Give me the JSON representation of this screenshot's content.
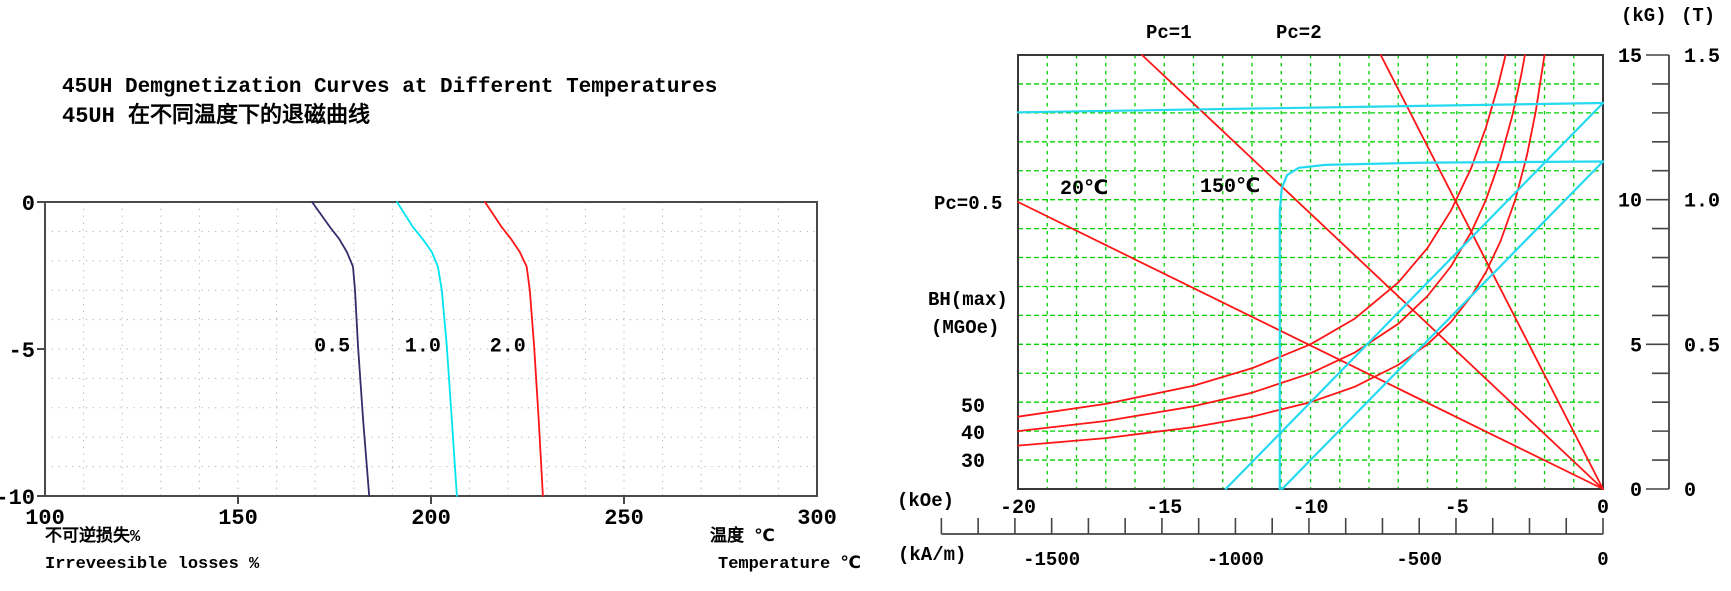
{
  "chart_data": [
    {
      "type": "line",
      "title": "45UH Demgnetization Curves at Different Temperatures",
      "title_zh": "45UH 在不同温度下的退磁曲线",
      "ylabel_zh": "不可逆损失%",
      "ylabel_en": "Irreveesible losses %",
      "xlabel_zh": "温度 ℃",
      "xlabel_en": "Temperature ℃",
      "xlim": [
        100,
        300
      ],
      "ylim": [
        -10,
        0
      ],
      "x_ticks": [
        100,
        150,
        200,
        250,
        300
      ],
      "y_ticks": [
        0,
        -5,
        -10
      ],
      "grid": "dotted-gray, x every 10degC, y every 1%",
      "series": [
        {
          "name": "Pc=0.5",
          "label": "0.5",
          "label_at": {
            "T": 174.4,
            "loss": -4.85
          },
          "color": "#3a2a6a",
          "points": [
            [
              169.2,
              0
            ],
            [
              173.8,
              -0.85
            ],
            [
              176.2,
              -1.25
            ],
            [
              178.2,
              -1.7
            ],
            [
              179.8,
              -2.2
            ],
            [
              180.3,
              -3.0
            ],
            [
              181.1,
              -4.9
            ],
            [
              182.4,
              -7.4
            ],
            [
              184.0,
              -10
            ]
          ]
        },
        {
          "name": "Pc=1.0",
          "label": "1.0",
          "label_at": {
            "T": 197.9,
            "loss": -4.85
          },
          "color": "#00e4f0",
          "points": [
            [
              191.2,
              0
            ],
            [
              195.3,
              -0.85
            ],
            [
              197.8,
              -1.25
            ],
            [
              200.2,
              -1.7
            ],
            [
              201.8,
              -2.2
            ],
            [
              202.8,
              -3.0
            ],
            [
              204.1,
              -4.9
            ],
            [
              205.4,
              -7.4
            ],
            [
              206.7,
              -10
            ]
          ]
        },
        {
          "name": "Pc=2.0",
          "label": "2.0",
          "label_at": {
            "T": 219.9,
            "loss": -4.85
          },
          "color": "#ff1515",
          "points": [
            [
              214.0,
              0
            ],
            [
              218.3,
              -0.85
            ],
            [
              220.7,
              -1.25
            ],
            [
              223.0,
              -1.7
            ],
            [
              224.8,
              -2.2
            ],
            [
              225.6,
              -3.0
            ],
            [
              226.7,
              -4.9
            ],
            [
              227.9,
              -7.4
            ],
            [
              229.0,
              -10
            ]
          ]
        }
      ]
    },
    {
      "type": "line",
      "title": "45UH demagnetization curves (B-H, 20℃ and 150℃) with Pc load lines and BH(max) contours",
      "xlim": [
        -20,
        0
      ],
      "ylim": [
        0,
        15
      ],
      "x_ticks_koe": [
        -20,
        -15,
        -10,
        -5,
        0
      ],
      "x_ticks_kam": [
        -1500,
        -1000,
        -500,
        0
      ],
      "y_ticks_kg": [
        15,
        10,
        5,
        0
      ],
      "y_ticks_t": [
        "1.5",
        "1.0",
        "0.5",
        "0"
      ],
      "kam_per_koe": 79.577,
      "grid": "green-dashed, 1 kOe x 1 kG",
      "grid_color": "#00cf00",
      "units": {
        "koe": "(kOe)",
        "kam": "(kA/m)",
        "kg": "(kG)",
        "t": "(T)"
      },
      "annotations": [
        {
          "text": "Pc=1",
          "position": "top, at load line exit H=-15.8"
        },
        {
          "text": "Pc=2",
          "position": "top, at load line exit H=-7.6"
        },
        {
          "text": "Pc=0.5",
          "position": "left edge, B=9.9"
        },
        {
          "text": "20℃",
          "position": "inside plot, H=-17.7 B=10.3"
        },
        {
          "text": "150℃",
          "position": "inside plot, H=-12.9 B=10.4"
        },
        {
          "text": "BH(max)",
          "position": "left margin"
        },
        {
          "text": "(MGOe)",
          "position": "left margin"
        },
        {
          "text": "50",
          "position": "left edge, BH=50 contour entry"
        },
        {
          "text": "40",
          "position": "left edge, BH=40 contour entry"
        },
        {
          "text": "30",
          "position": "left edge, BH=30 contour entry"
        }
      ],
      "series": [
        {
          "name": "Pc=0.5 load line",
          "color": "#ff1515",
          "points": [
            [
              -20,
              9.92
            ],
            [
              0,
              0
            ]
          ]
        },
        {
          "name": "Pc=1 load line",
          "color": "#ff1515",
          "points": [
            [
              -15.76,
              15
            ],
            [
              0,
              0
            ]
          ]
        },
        {
          "name": "Pc=2 load line",
          "color": "#ff1515",
          "points": [
            [
              -7.6,
              15
            ],
            [
              0,
              0
            ]
          ]
        },
        {
          "name": "BHmax=50 MGOe",
          "color": "#ff1515",
          "points": [
            [
              -20,
              2.5
            ],
            [
              -17,
              2.94
            ],
            [
              -14,
              3.57
            ],
            [
              -12,
              4.17
            ],
            [
              -10,
              5.0
            ],
            [
              -8.5,
              5.88
            ],
            [
              -7,
              7.14
            ],
            [
              -6,
              8.33
            ],
            [
              -5.2,
              9.62
            ],
            [
              -4.5,
              11.11
            ],
            [
              -4.0,
              12.5
            ],
            [
              -3.6,
              13.89
            ],
            [
              -3.33,
              15
            ]
          ]
        },
        {
          "name": "BHmax=40 MGOe",
          "color": "#ff1515",
          "points": [
            [
              -20,
              2.0
            ],
            [
              -17,
              2.35
            ],
            [
              -14,
              2.86
            ],
            [
              -12,
              3.33
            ],
            [
              -10,
              4.0
            ],
            [
              -8.5,
              4.71
            ],
            [
              -7,
              5.71
            ],
            [
              -6,
              6.67
            ],
            [
              -5.2,
              7.69
            ],
            [
              -4.5,
              8.89
            ],
            [
              -4.0,
              10.0
            ],
            [
              -3.5,
              11.43
            ],
            [
              -3.1,
              12.9
            ],
            [
              -2.8,
              14.29
            ],
            [
              -2.67,
              15
            ]
          ]
        },
        {
          "name": "BHmax=30 MGOe",
          "color": "#ff1515",
          "points": [
            [
              -20,
              1.5
            ],
            [
              -17,
              1.76
            ],
            [
              -14,
              2.14
            ],
            [
              -12,
              2.5
            ],
            [
              -10,
              3.0
            ],
            [
              -8.5,
              3.53
            ],
            [
              -7,
              4.29
            ],
            [
              -6,
              5.0
            ],
            [
              -5.2,
              5.77
            ],
            [
              -4.5,
              6.67
            ],
            [
              -4.0,
              7.5
            ],
            [
              -3.5,
              8.57
            ],
            [
              -3.0,
              10.0
            ],
            [
              -2.6,
              11.54
            ],
            [
              -2.3,
              13.04
            ],
            [
              -2.0,
              15
            ]
          ]
        },
        {
          "name": "J curve 20℃",
          "color": "#25d9f0",
          "points": [
            [
              -20,
              13.02
            ],
            [
              0,
              13.34
            ]
          ]
        },
        {
          "name": "B curve 20℃",
          "color": "#25d9f0",
          "points": [
            [
              -12.9,
              0
            ],
            [
              0,
              13.34
            ]
          ]
        },
        {
          "name": "J curve 150℃",
          "color": "#25d9f0",
          "points": [
            [
              0,
              11.32
            ],
            [
              -6,
              11.28
            ],
            [
              -9.5,
              11.2
            ],
            [
              -10.4,
              11.1
            ],
            [
              -10.8,
              10.85
            ],
            [
              -10.98,
              10.4
            ],
            [
              -11.05,
              9.6
            ],
            [
              -11.05,
              0
            ]
          ]
        },
        {
          "name": "B curve 150℃",
          "color": "#25d9f0",
          "points": [
            [
              0,
              11.32
            ],
            [
              -10.97,
              0
            ]
          ]
        }
      ]
    }
  ]
}
